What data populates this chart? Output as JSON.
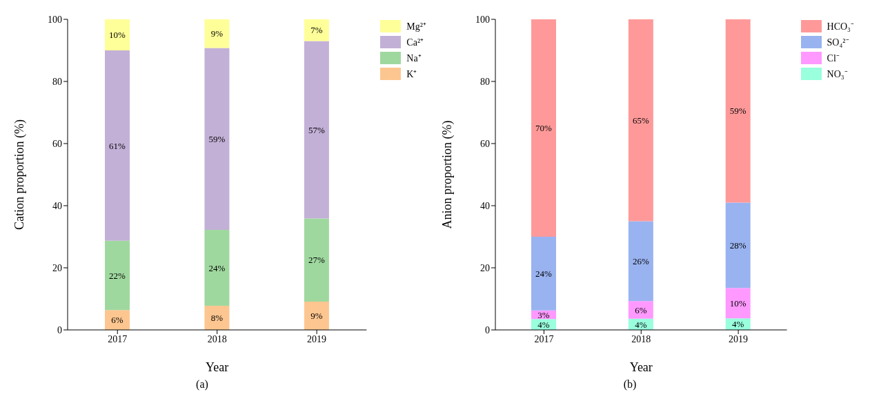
{
  "chart_data": [
    {
      "type": "bar",
      "stacked": true,
      "categories": [
        "2017",
        "2018",
        "2019"
      ],
      "xlabel": "Year",
      "ylabel": "Cation proportion (%)",
      "ylim": [
        0,
        100
      ],
      "yticks": [
        0,
        20,
        40,
        60,
        80,
        100
      ],
      "grid": false,
      "legend": "top right",
      "annotations": [
        "(a)"
      ],
      "series": [
        {
          "name": "K⁺",
          "color": "#fdc690",
          "values": [
            6.4,
            7.8,
            9.1
          ],
          "value_labels": [
            "6%",
            "8%",
            "9%"
          ]
        },
        {
          "name": "Na⁺",
          "color": "#9fd89f",
          "values": [
            22.3,
            24.4,
            26.8
          ],
          "value_labels": [
            "22%",
            "24%",
            "27%"
          ]
        },
        {
          "name": "Ca²⁺",
          "color": "#c3b0d7",
          "values": [
            61.3,
            58.6,
            57.1
          ],
          "value_labels": [
            "61%",
            "59%",
            "57%"
          ]
        },
        {
          "name": "Mg²⁺",
          "color": "#ffff99",
          "values": [
            10,
            9.2,
            7
          ],
          "value_labels": [
            "10%",
            "9%",
            "7%"
          ]
        }
      ]
    },
    {
      "type": "bar",
      "stacked": true,
      "categories": [
        "2017",
        "2018",
        "2019"
      ],
      "xlabel": "Year",
      "ylabel": "Anion proportion (%)",
      "ylim": [
        0,
        100
      ],
      "yticks": [
        0,
        20,
        40,
        60,
        80,
        100
      ],
      "grid": false,
      "legend": "top right",
      "annotations": [
        "(b)"
      ],
      "series": [
        {
          "name": "NO₃⁻",
          "color": "#99ffdd",
          "values": [
            3.5,
            3.6,
            3.7
          ],
          "value_labels": [
            "4%",
            "4%",
            "4%"
          ]
        },
        {
          "name": "Cl⁻",
          "color": "#ff99ff",
          "values": [
            2.8,
            5.7,
            9.8
          ],
          "value_labels": [
            "3%",
            "6%",
            "10%"
          ]
        },
        {
          "name": "SO₄²⁻",
          "color": "#99b3f0",
          "values": [
            23.7,
            25.7,
            27.5
          ],
          "value_labels": [
            "24%",
            "26%",
            "28%"
          ]
        },
        {
          "name": "HCO₃⁻",
          "color": "#ff9999",
          "values": [
            70,
            65,
            59
          ],
          "value_labels": [
            "70%",
            "65%",
            "59%"
          ]
        }
      ]
    }
  ]
}
